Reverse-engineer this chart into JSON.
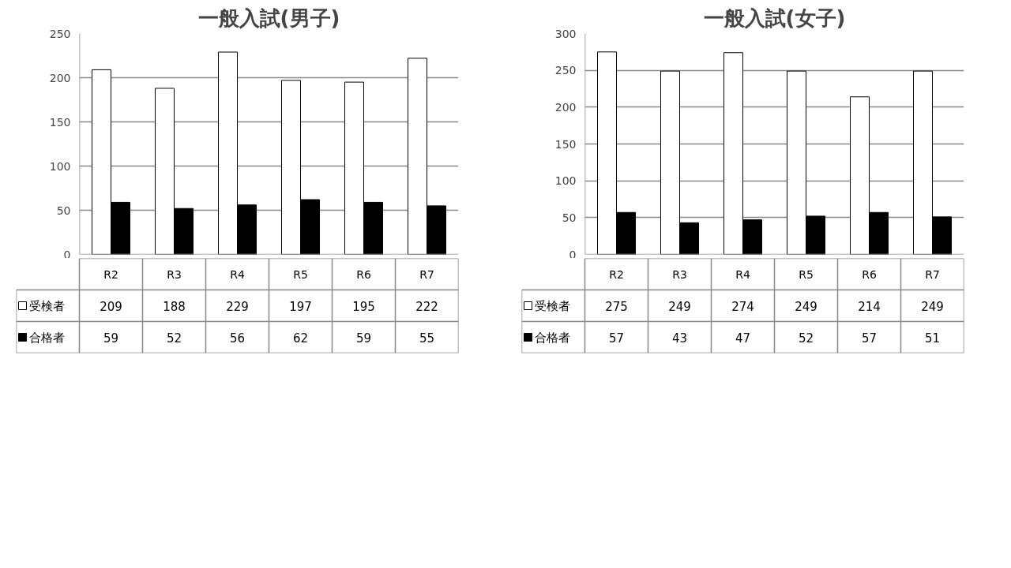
{
  "chart_data": [
    {
      "type": "bar",
      "title": "一般入試(男子)",
      "categories": [
        "R2",
        "R3",
        "R4",
        "R5",
        "R6",
        "R7"
      ],
      "series": [
        {
          "name": "受検者",
          "color": "#ffffff",
          "values": [
            209,
            188,
            229,
            197,
            195,
            222
          ]
        },
        {
          "name": "合格者",
          "color": "#000000",
          "values": [
            59,
            52,
            56,
            62,
            59,
            55
          ]
        }
      ],
      "ylim": [
        0,
        250
      ],
      "yticks": [
        0,
        50,
        100,
        150,
        200,
        250
      ],
      "grid": "y",
      "data_labels": true,
      "legend": "bottom"
    },
    {
      "type": "bar",
      "title": "一般入試(女子)",
      "categories": [
        "R2",
        "R3",
        "R4",
        "R5",
        "R6",
        "R7"
      ],
      "series": [
        {
          "name": "受検者",
          "color": "#ffffff",
          "values": [
            275,
            249,
            274,
            249,
            214,
            249
          ]
        },
        {
          "name": "合格者",
          "color": "#000000",
          "values": [
            57,
            43,
            47,
            52,
            57,
            51
          ]
        }
      ],
      "ylim": [
        0,
        300
      ],
      "yticks": [
        0,
        50,
        100,
        150,
        200,
        250,
        300
      ],
      "grid": "y",
      "data_labels": true,
      "legend": "bottom"
    }
  ]
}
